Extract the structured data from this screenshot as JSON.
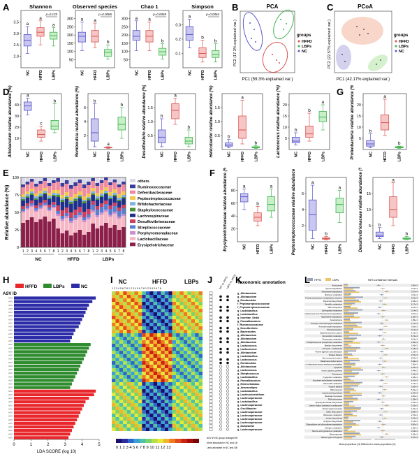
{
  "panel_labels": [
    "A",
    "B",
    "C",
    "D",
    "E",
    "F",
    "G",
    "H",
    "I",
    "J",
    "K",
    "L"
  ],
  "groups": [
    "NC",
    "HFFD",
    "LBPs"
  ],
  "group_colors": {
    "NC": "#5b57c9",
    "HFFD": "#d9534f",
    "LBPs": "#3fb34f"
  },
  "panelA": {
    "plots": [
      {
        "title": "Shannon",
        "pval": "p=0.135",
        "ticks": [
          "2.0",
          "2.5",
          "3.0",
          "3.5"
        ],
        "letters": [
          "a",
          "a",
          "a"
        ]
      },
      {
        "title": "Observed species",
        "pval": "p=0.0086",
        "ticks": [
          "50",
          "100",
          "150",
          "200",
          "250",
          "300"
        ],
        "letters": [
          "a",
          "a",
          "b"
        ]
      },
      {
        "title": "Chao 1",
        "pval": "p=0.0069",
        "ticks": [
          "50",
          "100",
          "150",
          "200",
          "250",
          "300"
        ],
        "letters": [
          "a",
          "a",
          "b"
        ]
      },
      {
        "title": "Simpson",
        "pval": "p=0.0064",
        "ticks": [
          "0.1",
          "0.2",
          "0.3"
        ],
        "letters": [
          "a",
          "b",
          "b"
        ]
      }
    ]
  },
  "panelB": {
    "title": "PCA",
    "xlabel": "PC1 (59.3% explained var.)",
    "ylabel": "PC2 (17.3% explained var.)",
    "legend_title": "groups",
    "legend": [
      "HFFD",
      "LBPs",
      "NC"
    ]
  },
  "panelC": {
    "title": "PCoA",
    "xlabel": "PC1 (42.17% explained var.)",
    "ylabel": "PC2 (22.57% explained var.)",
    "legend_title": "groups",
    "legend": [
      "HFFD",
      "LBPs",
      "NC"
    ]
  },
  "panelD": {
    "plots": [
      {
        "ylabel": "Allobaculum relative abundance (%)",
        "ticks": [
          "10",
          "20",
          "30",
          "40"
        ],
        "letters": [
          "a",
          "c",
          "b"
        ]
      },
      {
        "ylabel": "Romboutsia relative abundance (%)",
        "ticks": [
          "2",
          "4",
          "6"
        ],
        "letters": [
          "b",
          "a",
          "b"
        ]
      },
      {
        "ylabel": "Desulfovibrio relative abundance (%)",
        "ticks": [
          "0.5",
          "1.0",
          "1.5"
        ],
        "letters": [
          "b",
          "a",
          "b"
        ]
      },
      {
        "ylabel": "Helicobacter relative abundance (%)",
        "ticks": [
          "0.5",
          "1.0",
          "1.5"
        ],
        "letters": [
          "b",
          "a",
          "b"
        ]
      },
      {
        "ylabel": "Lactococcus relative abundance (%)",
        "ticks": [
          "5",
          "10",
          "15",
          "20"
        ],
        "letters": [
          "b",
          "b",
          "a"
        ]
      }
    ]
  },
  "panelG": {
    "ylabel": "Proteobacteria relative abundance (%)",
    "ticks": [
      "5",
      "10",
      "15",
      "20"
    ],
    "letters": [
      "b",
      "a",
      "b"
    ]
  },
  "panelE": {
    "ylabel": "Relative abundance (%)",
    "yticks": [
      "0",
      "25",
      "50",
      "75",
      "100"
    ],
    "legend": [
      {
        "name": "others",
        "color": "#d9d9e8"
      },
      {
        "name": "Ruminococcaceae",
        "color": "#3c3c9a"
      },
      {
        "name": "Deferribacteraceae",
        "color": "#f08ca0"
      },
      {
        "name": "Peptostreptococcaceae",
        "color": "#f2c84b"
      },
      {
        "name": "Bifidobacteriaceae",
        "color": "#7fb3e0"
      },
      {
        "name": "Staphylococcaceae",
        "color": "#4a8f3a"
      },
      {
        "name": "Lachnospiraceae",
        "color": "#1f2f8c"
      },
      {
        "name": "Desulfovibrionaceae",
        "color": "#c94060"
      },
      {
        "name": "Streptococcaceae",
        "color": "#5a7ed0"
      },
      {
        "name": "Porphyromonadaceae",
        "color": "#c88fd0"
      },
      {
        "name": "Lactobacillaceae",
        "color": "#f6b8c6"
      },
      {
        "name": "Erysipelotrichaceae",
        "color": "#8c1f4a"
      }
    ],
    "xnums": [
      "1",
      "2",
      "3",
      "4",
      "5",
      "6",
      "7",
      "8",
      "1",
      "2",
      "3",
      "4",
      "5",
      "6",
      "7",
      "8",
      "1",
      "2",
      "3",
      "4",
      "5",
      "6",
      "7",
      "8"
    ],
    "groups": [
      "NC",
      "HFFD",
      "LBPs"
    ]
  },
  "panelF": {
    "plots": [
      {
        "ylabel": "Erysipelotrichaceae relative abundance (%)",
        "ticks": [
          "20",
          "40",
          "60",
          "80"
        ],
        "letters": [
          "a",
          "b",
          "a"
        ]
      },
      {
        "ylabel": "Peptostreptococcaceae relative abundance (%)",
        "ticks": [
          "2",
          "4",
          "6"
        ],
        "letters": [
          "a",
          "b",
          "a"
        ]
      },
      {
        "ylabel": "Desulfovibrionaceae relative abundance (%)",
        "ticks": [
          "5",
          "10",
          "15"
        ],
        "letters": [
          "b",
          "a",
          "b"
        ]
      }
    ]
  },
  "panelH": {
    "legend": [
      "HFFD",
      "LBPs",
      "NC"
    ],
    "title": "ASV ID",
    "xlabel": "LDA SCORE (log 10)",
    "xticks": [
      "0",
      "1",
      "2",
      "3",
      "4",
      "5"
    ]
  },
  "panelI": {
    "headers": [
      "NC",
      "HFFD",
      "LBPs"
    ],
    "nums": "1 2 3 4 5 6 7 8 1 2 3 4 5 6 7 8 1 2 3 4 5 6 7 8",
    "scale": "0 1 2 3 4 5 6 7 8 9 10 11 12 13"
  },
  "panelJ": {
    "note1": "ASV in NC group changed HFFD was reversed by LBPs",
    "note2": "More abundant in NC and LBPs groups in HFFD group",
    "note3": "Less abundant in NC and LBPs groups in HFFD group"
  },
  "panelK": {
    "title": "Taxonomic annotation",
    "items": [
      "g_Allobaculum",
      "g_Allobaculum",
      "g_Romboutsia",
      "f_Peptostreptococcaceae",
      "f_Peptostreptococcaceae",
      "g_Lactobacillus",
      "g_Lactobacillus",
      "g_Incertae_Sedis",
      "g_Faecalibaculum",
      "f_Ruminococcaceae",
      "g_Desulfovibrio",
      "g_Bacteroides",
      "g_Allobaculum",
      "g_Allobaculum",
      "g_Allobaculum",
      "g_Lactococcus",
      "g_Lactococcus",
      "g_Allobaculum",
      "g_Lactobacillus",
      "g_Lactococcus",
      "g_Romboutsia",
      "g_Allobaculum",
      "g_Lactococcus",
      "g_Streptococcus",
      "g_Lactobacillus",
      "g_Faecalibaculum",
      "g_Enterorhabdus",
      "g_Anaerostipes",
      "g_Lactobacillus",
      "g_Lachnoclostridium",
      "g_Lachnospiraceae",
      "g_Lactobacillus",
      "g_Lachnospiraceae",
      "g_Oscillibacter",
      "g_Lachnospiraceae",
      "g_Lachnospiraceae",
      "g_Lachnospiraceae",
      "g_Lachnospiraceae",
      "g_Dubosiella",
      "g_Lachnospiraceae"
    ]
  },
  "panelL": {
    "legend": [
      "HFFD",
      "LBPs"
    ],
    "title": "95% confidence intervals",
    "xlabel": "Mean proportions (%)  Difference in mean proportions (%)",
    "pathways": [
      "Endocytosis",
      "Glycine degradation",
      "Nitrotoluene degradation",
      "Methane metabolism",
      "Protein processing in endoplasmic reticulum",
      "Flavonoid biosynthesis",
      "Penicillin metabolism",
      "ABC transporters",
      "Sphingolipid metabolism",
      "Chlorocyclohexane and chlorobenzene degradation",
      "Naphthalene degradation",
      "Sesquiterpene",
      "Porphyrin and chlorophyll metabolism",
      "Aminobenzoate degradation",
      "Phototransduction",
      "Bacterial secretion system",
      "Glycerolipid metabolism",
      "Propanoate metabolism",
      "Phosphonate and phosphinate metabolism",
      "Betalain biosynthesis",
      "Cell cycle - Caulobacter",
      "Protein digestion and absorption",
      "Chagas disease",
      "Non-component system",
      "Basal transcription factors",
      "Biosynthesis of siderophore group nonribosomal peptides",
      "Apoptosis",
      "Insulin signaling pathway",
      "Peroxisome",
      "Tryptophan metabolism",
      "Ascorbate and aldarate metabolism",
      "Vitamin B6 metabolism",
      "Tropane alkaloid",
      "RNA transport",
      "Carotenoid biosynthesis",
      "Bacterial chemotaxis",
      "RNA polymerase",
      "Lipopolysaccharide biosynthesis",
      "Carbon fixation pathways in prokaryotes",
      "African trypanosomiasis",
      "Sulfur relay system",
      "Butanoate metabolism",
      "Lysine biosynthesis",
      "N-Glycan biosynthesis",
      "Chloroalkane and chloroalkene degradation",
      "Nitrogen metabolism",
      "Taurine and hypotaurine metabolism",
      "Melanogenesis",
      "Various types of N-glycan"
    ],
    "pvals": [
      "0.30e-3",
      "0.21e-3",
      "0.37e-4",
      "0.11e-3",
      "0.31e-3",
      "2.45e-3",
      "6.17e-3",
      "5.97e-3",
      "0.14e-3",
      "0.27e-2",
      "2.55e-3",
      "1.89e-3",
      "2.17e-3",
      "0.36e-3",
      "0.14e-3",
      "6.41e-3",
      "6.72e-3",
      "5.24e-3",
      "2.82e-3",
      "3.43e-3",
      "1.18e-3",
      "1.33e-3",
      "2.37e-3",
      "8.94e-3",
      "6.49e-3",
      "7.50e-3",
      "0.44e-3",
      "6.44e-3",
      "1.03e-3",
      "2.48e-3",
      "6.10e-3",
      "2.73e-3",
      "3.66e-3",
      "5.51e-3",
      "2.34e-3",
      "3.60e-3",
      "1.28e-3",
      "3.24e-3",
      "5.33e-3",
      "1.91e-3",
      "5.68e-3",
      "2.70e-3",
      "4.22e-3",
      "4.14e-3",
      "8.50e-3",
      "1.96e-3",
      "3.23e-3",
      "4.55e-3",
      "6.47e-3"
    ]
  }
}
